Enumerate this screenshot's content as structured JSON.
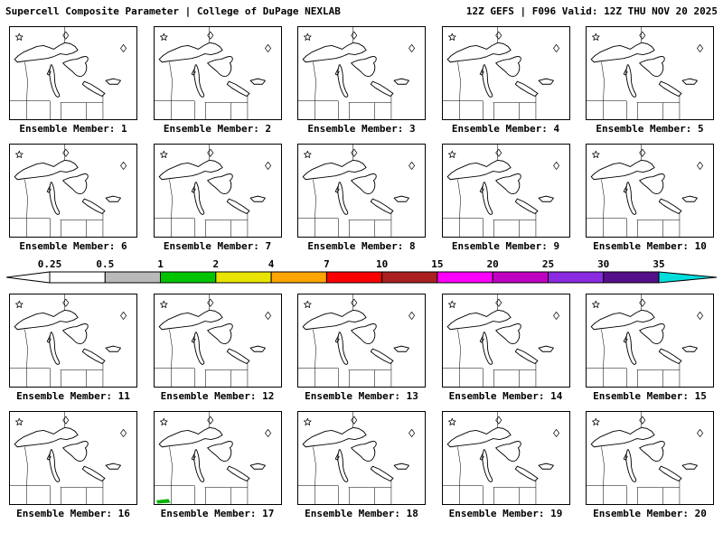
{
  "header": {
    "left": "Supercell Composite Parameter | College of DuPage NEXLAB",
    "right": "12Z GEFS | F096 Valid: 12Z THU NOV 20 2025"
  },
  "panels": [
    {
      "label": "Ensemble Member: 1"
    },
    {
      "label": "Ensemble Member: 2"
    },
    {
      "label": "Ensemble Member: 3"
    },
    {
      "label": "Ensemble Member: 4"
    },
    {
      "label": "Ensemble Member: 5"
    },
    {
      "label": "Ensemble Member: 6"
    },
    {
      "label": "Ensemble Member: 7"
    },
    {
      "label": "Ensemble Member: 8"
    },
    {
      "label": "Ensemble Member: 9"
    },
    {
      "label": "Ensemble Member: 10"
    },
    {
      "label": "Ensemble Member: 11"
    },
    {
      "label": "Ensemble Member: 12"
    },
    {
      "label": "Ensemble Member: 13"
    },
    {
      "label": "Ensemble Member: 14"
    },
    {
      "label": "Ensemble Member: 15"
    },
    {
      "label": "Ensemble Member: 16"
    },
    {
      "label": "Ensemble Member: 17",
      "signal": "small-green-scp-patch-bottom-left"
    },
    {
      "label": "Ensemble Member: 18"
    },
    {
      "label": "Ensemble Member: 19"
    },
    {
      "label": "Ensemble Member: 20"
    }
  ],
  "colorbar": {
    "ticks": [
      "0.25",
      "0.5",
      "1",
      "2",
      "4",
      "7",
      "10",
      "15",
      "20",
      "25",
      "30",
      "35"
    ],
    "segment_colors": [
      "#ffffff",
      "#b9b9b9",
      "#00c300",
      "#e8e400",
      "#ffa500",
      "#fa0000",
      "#aa2020",
      "#ff00ff",
      "#c000c0",
      "#8a2be2",
      "#550f8a"
    ],
    "left_arrow_color": "#ffffff",
    "right_arrow_color": "#00dddd"
  },
  "colors": {
    "signal_green": "#00b400",
    "line_black": "#000000",
    "background": "#ffffff"
  }
}
